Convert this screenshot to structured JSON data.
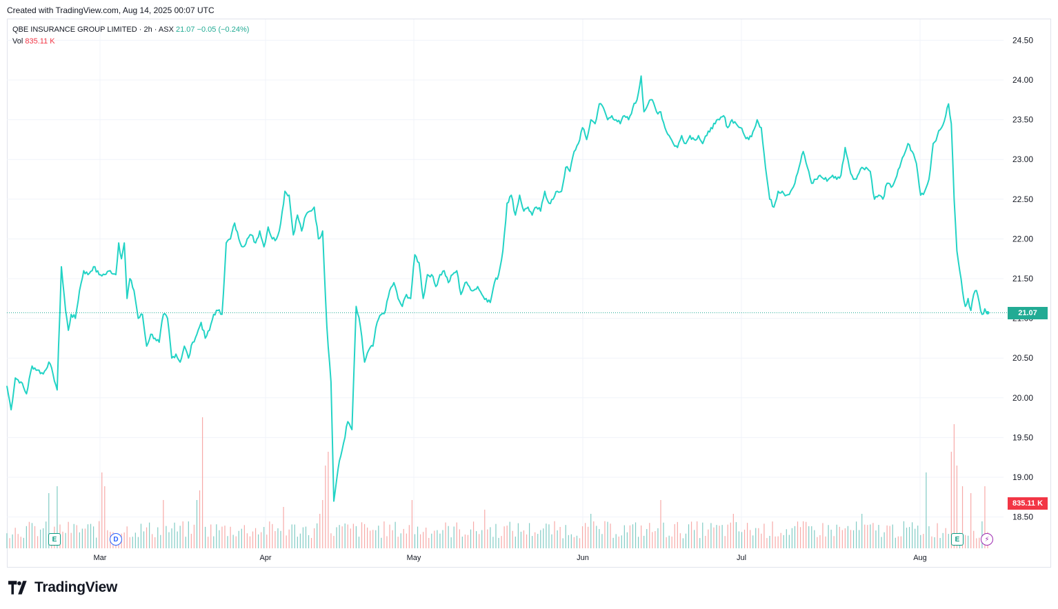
{
  "header_note": "Created with TradingView.com, Aug 14, 2025 00:07 UTC",
  "legend": {
    "symbol": "QBE INSURANCE GROUP LIMITED · 2h · ASX",
    "last": "21.07",
    "change": "−0.05 (−0.24%)",
    "vol_label": "Vol",
    "vol_value": "835.11 K"
  },
  "brand": {
    "name": "TradingView"
  },
  "colors": {
    "line": "#22d3c5",
    "vol_up": "#80cbc4",
    "vol_down": "#f7a9a7",
    "grid": "#f0f3fa",
    "last_price": "#22ab94",
    "last_vol": "#f23645"
  },
  "markers": [
    {
      "icon": "earnings-icon",
      "glyph": "E",
      "kind": "earn",
      "date_index": 38
    },
    {
      "icon": "dividend-icon",
      "glyph": "D",
      "kind": "div",
      "date_index": 92
    },
    {
      "icon": "earnings-icon",
      "glyph": "E",
      "kind": "earn",
      "date_index": 795
    },
    {
      "icon": "flash-icon",
      "glyph": "⚡",
      "kind": "flash",
      "date_index": 818
    }
  ],
  "chart_data": {
    "type": "line",
    "title": "QBE INSURANCE GROUP LIMITED · 2h · ASX",
    "x_tick_labels": [
      "Mar",
      "Apr",
      "May",
      "Jun",
      "Jul",
      "Aug"
    ],
    "y_tick_labels": [
      "24.50",
      "24.00",
      "23.50",
      "23.00",
      "22.50",
      "22.00",
      "21.50",
      "21.00",
      "20.50",
      "20.00",
      "19.50",
      "19.00",
      "18.50"
    ],
    "ylim": [
      18.2,
      24.75
    ],
    "last_price": 21.07,
    "last_price_label": "21.07",
    "last_volume_label": "835.11 K",
    "grid": true,
    "price_series": {
      "name": "",
      "anchors": [
        [
          0,
          20.15
        ],
        [
          3,
          19.85
        ],
        [
          6,
          20.25
        ],
        [
          10,
          20.2
        ],
        [
          14,
          20.05
        ],
        [
          18,
          20.4
        ],
        [
          22,
          20.35
        ],
        [
          26,
          20.3
        ],
        [
          30,
          20.45
        ],
        [
          33,
          20.3
        ],
        [
          36,
          20.1
        ],
        [
          39,
          21.65
        ],
        [
          42,
          21.1
        ],
        [
          44,
          20.85
        ],
        [
          46,
          21.05
        ],
        [
          49,
          21.0
        ],
        [
          52,
          21.35
        ],
        [
          55,
          21.6
        ],
        [
          58,
          21.55
        ],
        [
          62,
          21.65
        ],
        [
          66,
          21.55
        ],
        [
          70,
          21.55
        ],
        [
          74,
          21.6
        ],
        [
          78,
          21.55
        ],
        [
          80,
          21.95
        ],
        [
          82,
          21.75
        ],
        [
          84,
          21.95
        ],
        [
          86,
          21.25
        ],
        [
          88,
          21.5
        ],
        [
          91,
          21.35
        ],
        [
          94,
          21.0
        ],
        [
          97,
          21.05
        ],
        [
          100,
          20.65
        ],
        [
          103,
          20.8
        ],
        [
          106,
          20.75
        ],
        [
          109,
          20.7
        ],
        [
          112,
          21.05
        ],
        [
          115,
          21.0
        ],
        [
          118,
          20.5
        ],
        [
          121,
          20.55
        ],
        [
          124,
          20.45
        ],
        [
          127,
          20.65
        ],
        [
          130,
          20.5
        ],
        [
          133,
          20.7
        ],
        [
          136,
          20.8
        ],
        [
          139,
          20.95
        ],
        [
          142,
          20.75
        ],
        [
          145,
          20.85
        ],
        [
          148,
          21.05
        ],
        [
          151,
          21.1
        ],
        [
          154,
          21.05
        ],
        [
          157,
          21.95
        ],
        [
          160,
          22.0
        ],
        [
          163,
          22.2
        ],
        [
          166,
          22.0
        ],
        [
          169,
          21.9
        ],
        [
          172,
          22.0
        ],
        [
          175,
          22.05
        ],
        [
          178,
          21.95
        ],
        [
          181,
          22.1
        ],
        [
          184,
          21.9
        ],
        [
          187,
          22.15
        ],
        [
          190,
          22.0
        ],
        [
          193,
          22.0
        ],
        [
          196,
          22.2
        ],
        [
          199,
          22.6
        ],
        [
          202,
          22.55
        ],
        [
          205,
          22.05
        ],
        [
          208,
          22.3
        ],
        [
          211,
          22.1
        ],
        [
          214,
          22.3
        ],
        [
          217,
          22.35
        ],
        [
          220,
          22.4
        ],
        [
          223,
          22.0
        ],
        [
          226,
          22.1
        ],
        [
          229,
          20.9
        ],
        [
          232,
          20.2
        ],
        [
          234,
          18.7
        ],
        [
          237,
          19.1
        ],
        [
          240,
          19.35
        ],
        [
          244,
          19.7
        ],
        [
          247,
          19.6
        ],
        [
          250,
          21.15
        ],
        [
          253,
          20.9
        ],
        [
          256,
          20.45
        ],
        [
          259,
          20.6
        ],
        [
          262,
          20.65
        ],
        [
          265,
          20.95
        ],
        [
          268,
          21.05
        ],
        [
          271,
          21.1
        ],
        [
          274,
          21.35
        ],
        [
          277,
          21.45
        ],
        [
          280,
          21.25
        ],
        [
          283,
          21.15
        ],
        [
          286,
          21.3
        ],
        [
          289,
          21.25
        ],
        [
          292,
          21.8
        ],
        [
          295,
          21.7
        ],
        [
          298,
          21.25
        ],
        [
          301,
          21.55
        ],
        [
          304,
          21.55
        ],
        [
          307,
          21.4
        ],
        [
          310,
          21.55
        ],
        [
          313,
          21.6
        ],
        [
          316,
          21.45
        ],
        [
          319,
          21.55
        ],
        [
          322,
          21.6
        ],
        [
          325,
          21.3
        ],
        [
          328,
          21.45
        ],
        [
          331,
          21.4
        ],
        [
          334,
          21.35
        ],
        [
          337,
          21.4
        ],
        [
          340,
          21.3
        ],
        [
          343,
          21.25
        ],
        [
          346,
          21.2
        ],
        [
          349,
          21.45
        ],
        [
          352,
          21.55
        ],
        [
          355,
          21.85
        ],
        [
          358,
          22.45
        ],
        [
          361,
          22.55
        ],
        [
          364,
          22.3
        ],
        [
          367,
          22.55
        ],
        [
          370,
          22.35
        ],
        [
          373,
          22.4
        ],
        [
          376,
          22.3
        ],
        [
          379,
          22.4
        ],
        [
          382,
          22.35
        ],
        [
          385,
          22.6
        ],
        [
          388,
          22.45
        ],
        [
          391,
          22.5
        ],
        [
          394,
          22.6
        ],
        [
          397,
          22.6
        ],
        [
          400,
          22.9
        ],
        [
          403,
          22.85
        ],
        [
          406,
          23.1
        ],
        [
          409,
          23.2
        ],
        [
          412,
          23.4
        ],
        [
          415,
          23.25
        ],
        [
          418,
          23.5
        ],
        [
          421,
          23.45
        ],
        [
          424,
          23.7
        ],
        [
          427,
          23.65
        ],
        [
          430,
          23.5
        ],
        [
          433,
          23.55
        ],
        [
          436,
          23.5
        ],
        [
          439,
          23.45
        ],
        [
          442,
          23.55
        ],
        [
          445,
          23.5
        ],
        [
          448,
          23.65
        ],
        [
          451,
          23.75
        ],
        [
          454,
          24.05
        ],
        [
          456,
          23.6
        ],
        [
          459,
          23.7
        ],
        [
          462,
          23.75
        ],
        [
          465,
          23.6
        ],
        [
          468,
          23.6
        ],
        [
          471,
          23.4
        ],
        [
          474,
          23.3
        ],
        [
          477,
          23.2
        ],
        [
          480,
          23.15
        ],
        [
          483,
          23.3
        ],
        [
          486,
          23.2
        ],
        [
          489,
          23.3
        ],
        [
          492,
          23.25
        ],
        [
          495,
          23.3
        ],
        [
          498,
          23.2
        ],
        [
          501,
          23.3
        ],
        [
          504,
          23.4
        ],
        [
          507,
          23.45
        ],
        [
          510,
          23.5
        ],
        [
          513,
          23.55
        ],
        [
          516,
          23.4
        ],
        [
          519,
          23.5
        ],
        [
          522,
          23.45
        ],
        [
          525,
          23.4
        ],
        [
          528,
          23.3
        ],
        [
          531,
          23.25
        ],
        [
          534,
          23.35
        ],
        [
          537,
          23.5
        ],
        [
          540,
          23.4
        ],
        [
          543,
          22.9
        ],
        [
          546,
          22.5
        ],
        [
          549,
          22.4
        ],
        [
          552,
          22.6
        ],
        [
          555,
          22.6
        ],
        [
          558,
          22.55
        ],
        [
          561,
          22.6
        ],
        [
          564,
          22.7
        ],
        [
          567,
          22.9
        ],
        [
          570,
          23.1
        ],
        [
          573,
          22.9
        ],
        [
          576,
          22.7
        ],
        [
          579,
          22.75
        ],
        [
          582,
          22.8
        ],
        [
          585,
          22.75
        ],
        [
          588,
          22.75
        ],
        [
          591,
          22.8
        ],
        [
          594,
          22.75
        ],
        [
          597,
          22.8
        ],
        [
          600,
          23.15
        ],
        [
          603,
          22.9
        ],
        [
          606,
          22.75
        ],
        [
          609,
          22.8
        ],
        [
          612,
          22.9
        ],
        [
          615,
          22.9
        ],
        [
          618,
          22.85
        ],
        [
          621,
          22.5
        ],
        [
          624,
          22.55
        ],
        [
          627,
          22.5
        ],
        [
          630,
          22.7
        ],
        [
          633,
          22.65
        ],
        [
          636,
          22.75
        ],
        [
          639,
          22.9
        ],
        [
          642,
          23.05
        ],
        [
          645,
          23.2
        ],
        [
          648,
          23.1
        ],
        [
          651,
          22.95
        ],
        [
          654,
          22.55
        ],
        [
          657,
          22.6
        ],
        [
          660,
          22.75
        ],
        [
          663,
          23.2
        ],
        [
          666,
          23.3
        ],
        [
          669,
          23.4
        ],
        [
          672,
          23.55
        ],
        [
          674,
          23.7
        ],
        [
          676,
          23.45
        ],
        [
          678,
          22.5
        ],
        [
          680,
          21.85
        ],
        [
          682,
          21.6
        ],
        [
          684,
          21.35
        ],
        [
          686,
          21.15
        ],
        [
          688,
          21.25
        ],
        [
          690,
          21.1
        ],
        [
          692,
          21.3
        ],
        [
          694,
          21.35
        ],
        [
          696,
          21.2
        ],
        [
          698,
          21.05
        ],
        [
          700,
          21.12
        ],
        [
          702,
          21.07
        ]
      ]
    },
    "volume_series": {
      "name": "Vol",
      "spikes": [
        [
          30,
          0.4,
          1
        ],
        [
          36,
          0.45,
          1
        ],
        [
          68,
          0.55,
          0
        ],
        [
          70,
          0.45,
          0
        ],
        [
          112,
          0.35,
          0
        ],
        [
          136,
          0.35,
          1
        ],
        [
          138,
          0.42,
          0
        ],
        [
          140,
          0.95,
          0
        ],
        [
          198,
          0.3,
          0
        ],
        [
          224,
          0.25,
          0
        ],
        [
          226,
          0.35,
          0
        ],
        [
          228,
          0.6,
          0
        ],
        [
          230,
          0.7,
          0
        ],
        [
          290,
          0.35,
          0
        ],
        [
          342,
          0.28,
          0
        ],
        [
          418,
          0.25,
          1
        ],
        [
          468,
          0.35,
          0
        ],
        [
          520,
          0.25,
          0
        ],
        [
          612,
          0.25,
          1
        ],
        [
          658,
          0.55,
          1
        ],
        [
          676,
          0.7,
          0
        ],
        [
          678,
          0.9,
          0
        ],
        [
          680,
          0.6,
          0
        ],
        [
          684,
          0.45,
          0
        ],
        [
          690,
          0.4,
          0
        ],
        [
          695,
          0.35,
          0
        ],
        [
          700,
          0.45,
          0
        ]
      ]
    }
  }
}
